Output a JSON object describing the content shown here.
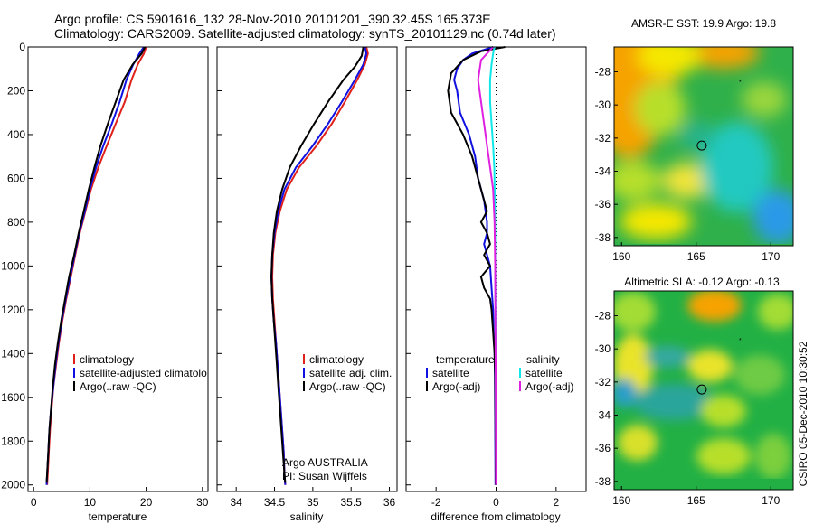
{
  "title": {
    "line1": "Argo profile: CS 5901616_132 28-Nov-2010 20101201_390 32.45S 165.373E",
    "line2": "Climatology: CARS2009. Satellite-adjusted climatology: synTS_20101129.nc (0.74d later)"
  },
  "side_note": "CSIRO 05-Dec-2010 10:30:52",
  "colors": {
    "climatology": "#e0201a",
    "satellite": "#1010e0",
    "argo": "#000000",
    "sat_salinity": "#10e8e8",
    "argo_salinity": "#e020e0"
  },
  "chart_data": [
    {
      "type": "line",
      "xlabel": "temperature",
      "xlim": [
        -1,
        31
      ],
      "ylim": [
        2030,
        0
      ],
      "xticks": [
        0,
        10,
        20,
        30
      ],
      "yticks": [
        0,
        200,
        400,
        600,
        800,
        1000,
        1200,
        1400,
        1600,
        1800,
        2000
      ],
      "legend": [
        "climatology",
        "satellite-adjusted climatology",
        "Argo(..raw -QC)"
      ],
      "series": [
        {
          "name": "climatology",
          "color": "#e0201a",
          "points": [
            [
              20.0,
              0
            ],
            [
              19.6,
              30
            ],
            [
              18.5,
              80
            ],
            [
              17.4,
              150
            ],
            [
              16.2,
              250
            ],
            [
              14.6,
              350
            ],
            [
              13.0,
              450
            ],
            [
              11.5,
              550
            ],
            [
              10.2,
              650
            ],
            [
              9.2,
              750
            ],
            [
              8.2,
              850
            ],
            [
              7.4,
              950
            ],
            [
              6.6,
              1050
            ],
            [
              5.8,
              1150
            ],
            [
              5.1,
              1250
            ],
            [
              4.5,
              1350
            ],
            [
              4.0,
              1450
            ],
            [
              3.5,
              1550
            ],
            [
              3.2,
              1650
            ],
            [
              2.9,
              1750
            ],
            [
              2.7,
              1850
            ],
            [
              2.5,
              1950
            ],
            [
              2.4,
              2000
            ]
          ]
        },
        {
          "name": "satellite-adjusted climatology",
          "color": "#1010e0",
          "points": [
            [
              19.6,
              0
            ],
            [
              18.8,
              30
            ],
            [
              17.7,
              80
            ],
            [
              16.5,
              150
            ],
            [
              15.3,
              250
            ],
            [
              13.9,
              350
            ],
            [
              12.4,
              450
            ],
            [
              11.1,
              550
            ],
            [
              10.0,
              650
            ],
            [
              9.1,
              750
            ],
            [
              8.1,
              850
            ],
            [
              7.3,
              950
            ],
            [
              6.5,
              1050
            ],
            [
              5.7,
              1150
            ],
            [
              5.0,
              1250
            ],
            [
              4.4,
              1350
            ],
            [
              3.9,
              1450
            ],
            [
              3.5,
              1550
            ],
            [
              3.1,
              1650
            ],
            [
              2.8,
              1750
            ],
            [
              2.6,
              1850
            ],
            [
              2.4,
              1950
            ],
            [
              2.3,
              2000
            ]
          ]
        },
        {
          "name": "Argo(..raw -QC)",
          "color": "#000000",
          "points": [
            [
              19.8,
              0
            ],
            [
              19.2,
              30
            ],
            [
              17.6,
              80
            ],
            [
              16.0,
              150
            ],
            [
              14.6,
              250
            ],
            [
              13.2,
              350
            ],
            [
              11.9,
              450
            ],
            [
              10.8,
              550
            ],
            [
              9.8,
              650
            ],
            [
              8.9,
              750
            ],
            [
              8.0,
              850
            ],
            [
              7.2,
              950
            ],
            [
              6.3,
              1050
            ],
            [
              5.6,
              1150
            ],
            [
              4.9,
              1250
            ],
            [
              4.3,
              1350
            ],
            [
              3.8,
              1450
            ],
            [
              3.4,
              1550
            ],
            [
              3.1,
              1650
            ],
            [
              2.8,
              1750
            ],
            [
              2.6,
              1850
            ],
            [
              2.4,
              1950
            ],
            [
              2.3,
              1990
            ]
          ]
        }
      ]
    },
    {
      "type": "line",
      "xlabel": "salinity",
      "xlim": [
        33.75,
        36.1
      ],
      "ylim": [
        2030,
        0
      ],
      "xticks": [
        34,
        34.5,
        35,
        35.5,
        36
      ],
      "legend": [
        "climatology",
        "satellite adj. clim.",
        "Argo(..raw -QC)"
      ],
      "annotation": [
        "Argo AUSTRALIA",
        "PI: Susan Wijffels"
      ],
      "series": [
        {
          "name": "climatology",
          "color": "#e0201a",
          "points": [
            [
              35.7,
              0
            ],
            [
              35.72,
              30
            ],
            [
              35.68,
              80
            ],
            [
              35.58,
              150
            ],
            [
              35.42,
              250
            ],
            [
              35.25,
              350
            ],
            [
              35.05,
              450
            ],
            [
              34.82,
              550
            ],
            [
              34.66,
              650
            ],
            [
              34.57,
              750
            ],
            [
              34.51,
              850
            ],
            [
              34.48,
              950
            ],
            [
              34.47,
              1050
            ],
            [
              34.48,
              1150
            ],
            [
              34.5,
              1250
            ],
            [
              34.52,
              1350
            ],
            [
              34.54,
              1450
            ],
            [
              34.56,
              1550
            ],
            [
              34.58,
              1650
            ],
            [
              34.6,
              1750
            ],
            [
              34.62,
              1850
            ],
            [
              34.63,
              1950
            ],
            [
              34.64,
              2000
            ]
          ]
        },
        {
          "name": "satellite adj. clim.",
          "color": "#1010e0",
          "points": [
            [
              35.68,
              0
            ],
            [
              35.7,
              30
            ],
            [
              35.66,
              80
            ],
            [
              35.55,
              150
            ],
            [
              35.38,
              250
            ],
            [
              35.2,
              350
            ],
            [
              35.0,
              450
            ],
            [
              34.78,
              550
            ],
            [
              34.63,
              650
            ],
            [
              34.55,
              750
            ],
            [
              34.5,
              850
            ],
            [
              34.47,
              950
            ],
            [
              34.46,
              1050
            ],
            [
              34.47,
              1150
            ],
            [
              34.49,
              1250
            ],
            [
              34.52,
              1350
            ],
            [
              34.54,
              1450
            ],
            [
              34.56,
              1550
            ],
            [
              34.58,
              1650
            ],
            [
              34.6,
              1750
            ],
            [
              34.62,
              1850
            ],
            [
              34.63,
              1950
            ],
            [
              34.64,
              2000
            ]
          ]
        },
        {
          "name": "Argo(..raw -QC)",
          "color": "#000000",
          "points": [
            [
              35.66,
              0
            ],
            [
              35.64,
              40
            ],
            [
              35.55,
              90
            ],
            [
              35.4,
              150
            ],
            [
              35.2,
              250
            ],
            [
              35.02,
              350
            ],
            [
              34.85,
              450
            ],
            [
              34.7,
              550
            ],
            [
              34.6,
              650
            ],
            [
              34.53,
              750
            ],
            [
              34.49,
              850
            ],
            [
              34.47,
              950
            ],
            [
              34.46,
              1050
            ],
            [
              34.47,
              1150
            ],
            [
              34.49,
              1250
            ],
            [
              34.51,
              1350
            ],
            [
              34.53,
              1450
            ],
            [
              34.55,
              1550
            ],
            [
              34.57,
              1650
            ],
            [
              34.59,
              1750
            ],
            [
              34.61,
              1850
            ],
            [
              34.63,
              1950
            ],
            [
              34.64,
              1990
            ]
          ]
        }
      ]
    },
    {
      "type": "line",
      "xlabel": "difference from climatology",
      "xlim": [
        -3,
        3
      ],
      "ylim": [
        2030,
        0
      ],
      "xticks": [
        -2,
        0,
        2
      ],
      "zero_line": true,
      "legend_left": {
        "title": "temperature",
        "entries": [
          "satellite",
          "Argo(-adj)"
        ]
      },
      "legend_right": {
        "title": "salinity",
        "entries": [
          "satellite",
          "Argo(-adj)"
        ]
      },
      "series": [
        {
          "name": "satellite",
          "group": "temperature",
          "color": "#1010e0",
          "points": [
            [
              -0.1,
              0
            ],
            [
              -0.8,
              30
            ],
            [
              -1.1,
              60
            ],
            [
              -1.3,
              100
            ],
            [
              -1.4,
              150
            ],
            [
              -1.3,
              200
            ],
            [
              -1.2,
              300
            ],
            [
              -0.9,
              400
            ],
            [
              -0.7,
              500
            ],
            [
              -0.6,
              600
            ],
            [
              -0.4,
              700
            ],
            [
              -0.3,
              800
            ],
            [
              -0.3,
              850
            ],
            [
              -0.4,
              900
            ],
            [
              -0.2,
              1000
            ],
            [
              -0.15,
              1100
            ],
            [
              -0.1,
              1200
            ],
            [
              -0.08,
              1300
            ],
            [
              -0.05,
              1400
            ],
            [
              -0.04,
              1500
            ],
            [
              -0.03,
              1700
            ],
            [
              -0.02,
              2000
            ]
          ]
        },
        {
          "name": "Argo(-adj)",
          "group": "temperature",
          "color": "#000000",
          "points": [
            [
              0.3,
              0
            ],
            [
              -0.5,
              20
            ],
            [
              -1.1,
              60
            ],
            [
              -1.5,
              120
            ],
            [
              -1.6,
              200
            ],
            [
              -1.5,
              300
            ],
            [
              -1.1,
              400
            ],
            [
              -0.8,
              500
            ],
            [
              -0.6,
              600
            ],
            [
              -0.4,
              700
            ],
            [
              -0.3,
              750
            ],
            [
              -0.5,
              800
            ],
            [
              -0.3,
              850
            ],
            [
              -0.2,
              900
            ],
            [
              -0.4,
              950
            ],
            [
              -0.2,
              1000
            ],
            [
              -0.5,
              1050
            ],
            [
              -0.4,
              1100
            ],
            [
              -0.2,
              1150
            ],
            [
              -0.15,
              1200
            ],
            [
              -0.1,
              1300
            ],
            [
              -0.05,
              1400
            ],
            [
              -0.03,
              1500
            ],
            [
              -0.02,
              1700
            ],
            [
              -0.01,
              2000
            ]
          ]
        },
        {
          "name": "satellite",
          "group": "salinity",
          "color": "#10e8e8",
          "points": [
            [
              -0.05,
              0
            ],
            [
              -0.1,
              30
            ],
            [
              -0.15,
              80
            ],
            [
              -0.2,
              150
            ],
            [
              -0.2,
              250
            ],
            [
              -0.15,
              350
            ],
            [
              -0.1,
              450
            ],
            [
              -0.06,
              550
            ],
            [
              -0.04,
              700
            ],
            [
              -0.03,
              900
            ],
            [
              -0.02,
              1200
            ],
            [
              -0.01,
              1500
            ],
            [
              0.0,
              2000
            ]
          ]
        },
        {
          "name": "Argo(-adj)",
          "group": "salinity",
          "color": "#e020e0",
          "points": [
            [
              -0.1,
              0
            ],
            [
              -0.5,
              60
            ],
            [
              -0.6,
              150
            ],
            [
              -0.5,
              250
            ],
            [
              -0.4,
              350
            ],
            [
              -0.3,
              450
            ],
            [
              -0.2,
              550
            ],
            [
              -0.1,
              650
            ],
            [
              -0.05,
              800
            ],
            [
              -0.03,
              1000
            ],
            [
              -0.02,
              1300
            ],
            [
              -0.01,
              1600
            ],
            [
              0.0,
              2000
            ]
          ]
        }
      ]
    },
    {
      "type": "heatmap",
      "title": "AMSR-E SST: 19.9 Argo: 19.8",
      "xlim": [
        159.5,
        171.5
      ],
      "ylim": [
        -38.5,
        -26.5
      ],
      "xticks": [
        160,
        165,
        170
      ],
      "yticks": [
        -28,
        -30,
        -32,
        -34,
        -36,
        -38
      ],
      "marker": {
        "lon": 165.373,
        "lat": -32.45
      }
    },
    {
      "type": "heatmap",
      "title": "Altimetric SLA: -0.12 Argo: -0.13",
      "xlim": [
        159.5,
        171.5
      ],
      "ylim": [
        -38.5,
        -26.5
      ],
      "xticks": [
        160,
        165,
        170
      ],
      "yticks": [
        -28,
        -30,
        -32,
        -34,
        -36,
        -38
      ],
      "marker": {
        "lon": 165.373,
        "lat": -32.45
      }
    }
  ]
}
